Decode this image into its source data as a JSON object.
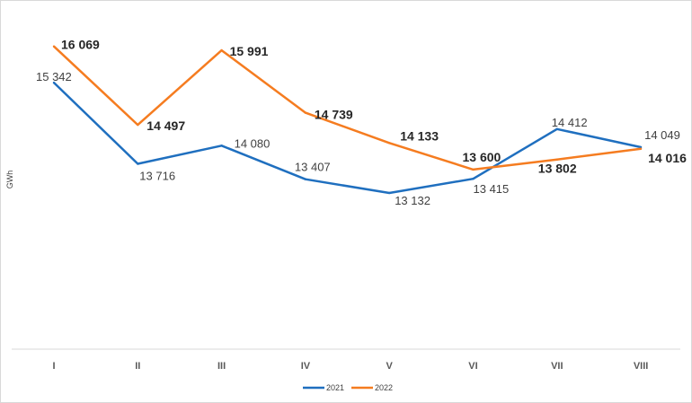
{
  "chart_data": {
    "type": "line",
    "title": "",
    "xlabel": "",
    "ylabel": "GWh",
    "categories": [
      "I",
      "II",
      "III",
      "IV",
      "V",
      "VI",
      "VII",
      "VIII"
    ],
    "ylim": [
      10000,
      17000
    ],
    "grid": false,
    "legend_position": "bottom",
    "series": [
      {
        "name": "2021",
        "color": "#1f6fbf",
        "values": [
          15342,
          13716,
          14080,
          13407,
          13132,
          13415,
          14412,
          14049
        ],
        "labels": [
          "15 342",
          "13 716",
          "14 080",
          "13 407",
          "13 132",
          "13 415",
          "14 412",
          "14 049"
        ]
      },
      {
        "name": "2022",
        "color": "#f57c20",
        "values": [
          16069,
          14497,
          15991,
          14739,
          14133,
          13600,
          13802,
          14016
        ],
        "labels": [
          "16 069",
          "14 497",
          "15 991",
          "14 739",
          "14 133",
          "13 600",
          "13 802",
          "14 016"
        ]
      }
    ]
  }
}
